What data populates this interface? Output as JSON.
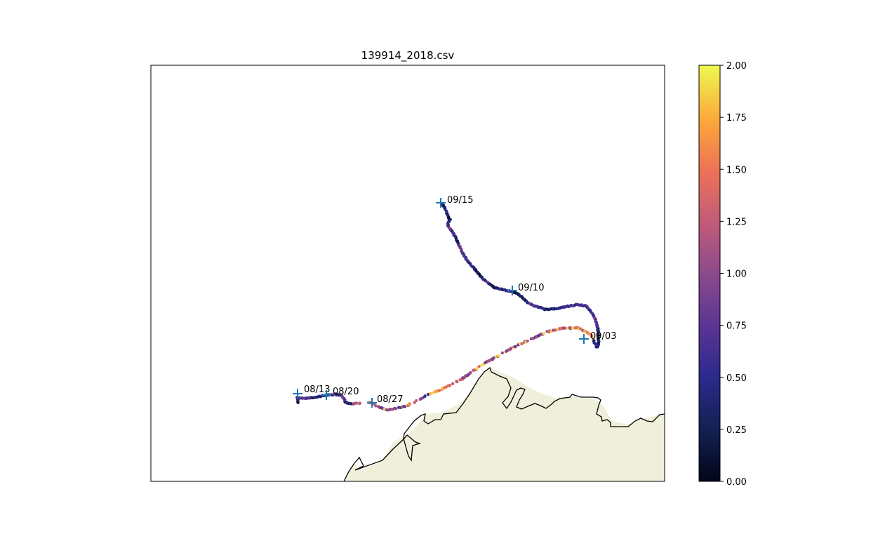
{
  "title": "139914_2018.csv",
  "colorbar": {
    "min": 0.0,
    "max": 2.0,
    "ticks": [
      "0.00",
      "0.25",
      "0.50",
      "0.75",
      "1.00",
      "1.25",
      "1.50",
      "1.75",
      "2.00"
    ],
    "colormap": "plasma"
  },
  "colors": {
    "land": "#efefdb",
    "coast": "#000000",
    "marker": "#1f77b4"
  },
  "markers": [
    {
      "label": "08/13"
    },
    {
      "label": "08/20"
    },
    {
      "label": "08/27"
    },
    {
      "label": "09/03"
    },
    {
      "label": "09/10"
    },
    {
      "label": "09/15"
    }
  ]
}
